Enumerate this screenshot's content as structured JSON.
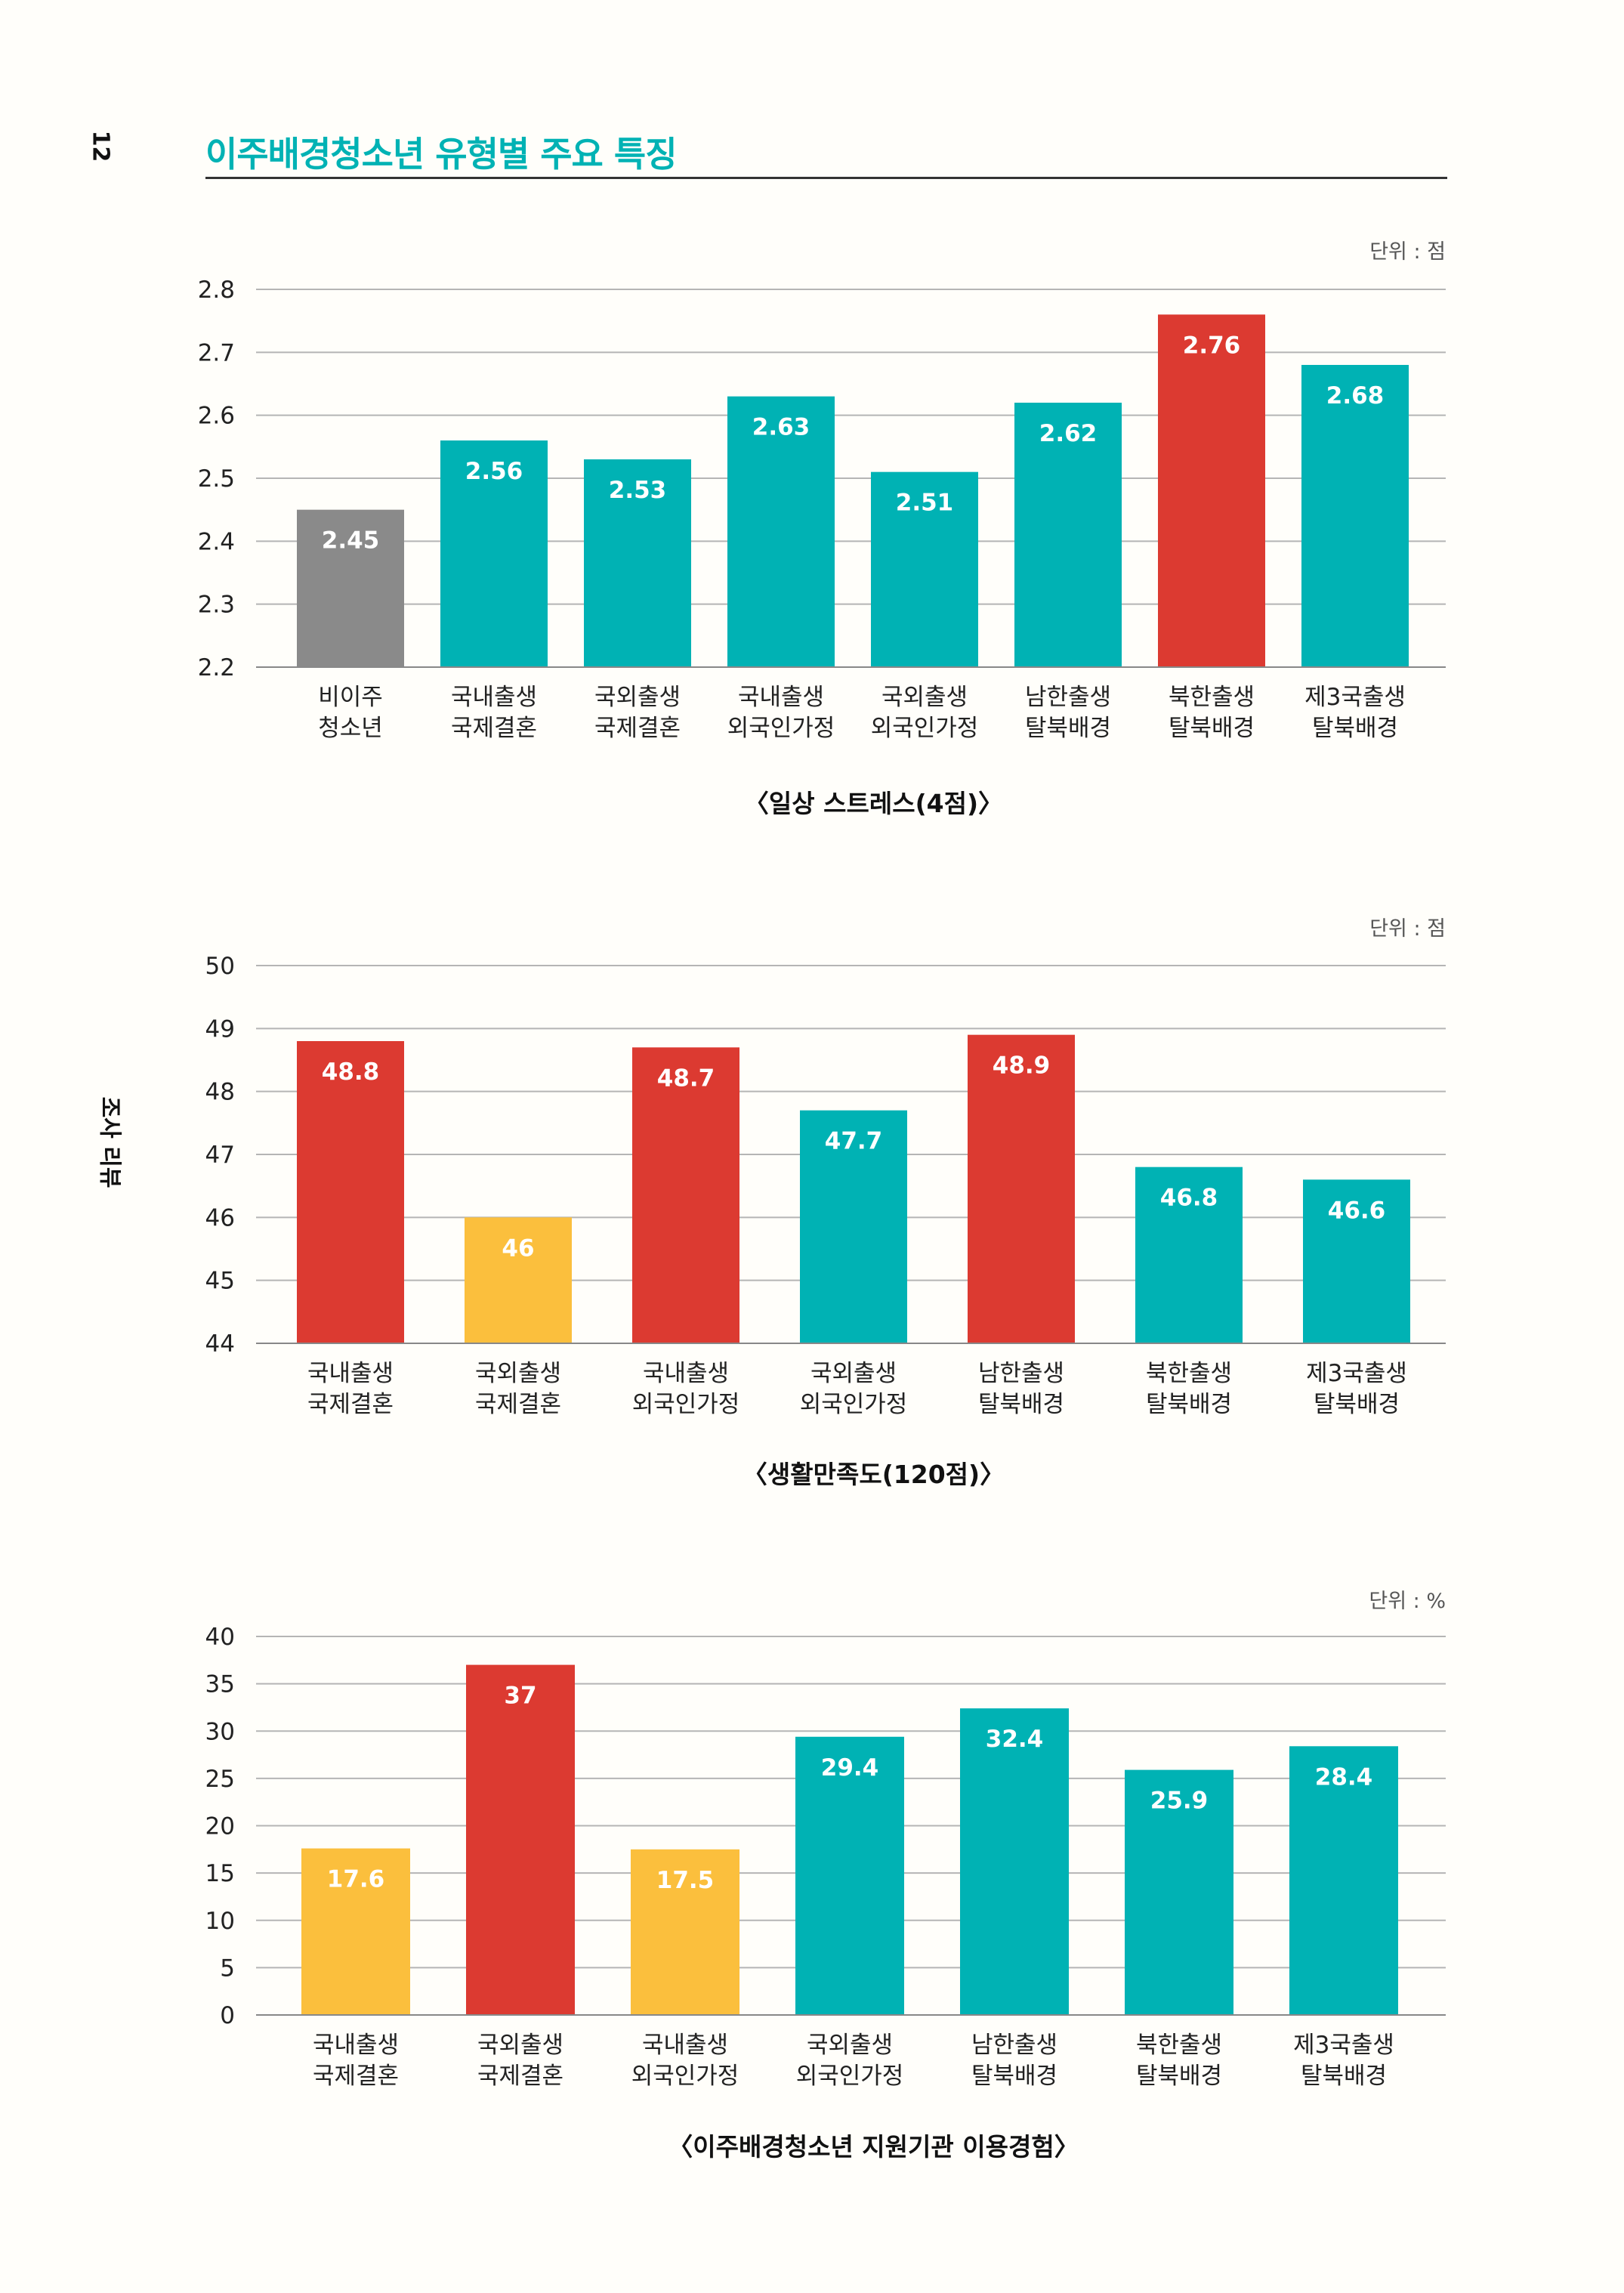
{
  "page": {
    "number": "12",
    "section": "조사 리뷰",
    "title": "이주배경청소년 유형별 주요 특징"
  },
  "chart_data": [
    {
      "type": "bar",
      "title": "〈일상 스트레스(4점)〉",
      "unit": "단위 : 점",
      "ylim": [
        2.2,
        2.8
      ],
      "yticks": [
        "2.2",
        "2.3",
        "2.4",
        "2.5",
        "2.6",
        "2.7",
        "2.8"
      ],
      "categories": [
        [
          "비이주",
          "청소년"
        ],
        [
          "국내출생",
          "국제결혼"
        ],
        [
          "국외출생",
          "국제결혼"
        ],
        [
          "국내출생",
          "외국인가정"
        ],
        [
          "국외출생",
          "외국인가정"
        ],
        [
          "남한출생",
          "탈북배경"
        ],
        [
          "북한출생",
          "탈북배경"
        ],
        [
          "제3국출생",
          "탈북배경"
        ]
      ],
      "values": [
        2.45,
        2.56,
        2.53,
        2.63,
        2.51,
        2.62,
        2.76,
        2.68
      ],
      "value_labels": [
        "2.45",
        "2.56",
        "2.53",
        "2.63",
        "2.51",
        "2.62",
        "2.76",
        "2.68"
      ],
      "colors": [
        "#8a8a8a",
        "#00b2b4",
        "#00b2b4",
        "#00b2b4",
        "#00b2b4",
        "#00b2b4",
        "#dc3a31",
        "#00b2b4"
      ],
      "grid": true
    },
    {
      "type": "bar",
      "title": "〈생활만족도(120점)〉",
      "unit": "단위 : 점",
      "ylim": [
        44,
        50
      ],
      "yticks": [
        "44",
        "45",
        "46",
        "47",
        "48",
        "49",
        "50"
      ],
      "categories": [
        [
          "국내출생",
          "국제결혼"
        ],
        [
          "국외출생",
          "국제결혼"
        ],
        [
          "국내출생",
          "외국인가정"
        ],
        [
          "국외출생",
          "외국인가정"
        ],
        [
          "남한출생",
          "탈북배경"
        ],
        [
          "북한출생",
          "탈북배경"
        ],
        [
          "제3국출생",
          "탈북배경"
        ]
      ],
      "values": [
        48.8,
        46,
        48.7,
        47.7,
        48.9,
        46.8,
        46.6
      ],
      "value_labels": [
        "48.8",
        "46",
        "48.7",
        "47.7",
        "48.9",
        "46.8",
        "46.6"
      ],
      "colors": [
        "#dc3a31",
        "#fbbf3d",
        "#dc3a31",
        "#00b2b4",
        "#dc3a31",
        "#00b2b4",
        "#00b2b4"
      ],
      "grid": true
    },
    {
      "type": "bar",
      "title": "〈이주배경청소년 지원기관 이용경험〉",
      "unit": "단위 : %",
      "ylim": [
        0,
        40
      ],
      "yticks": [
        "0",
        "5",
        "10",
        "15",
        "20",
        "25",
        "30",
        "35",
        "40"
      ],
      "categories": [
        [
          "국내출생",
          "국제결혼"
        ],
        [
          "국외출생",
          "국제결혼"
        ],
        [
          "국내출생",
          "외국인가정"
        ],
        [
          "국외출생",
          "외국인가정"
        ],
        [
          "남한출생",
          "탈북배경"
        ],
        [
          "북한출생",
          "탈북배경"
        ],
        [
          "제3국출생",
          "탈북배경"
        ]
      ],
      "values": [
        17.6,
        37,
        17.5,
        29.4,
        32.4,
        25.9,
        28.4
      ],
      "value_labels": [
        "17.6",
        "37",
        "17.5",
        "29.4",
        "32.4",
        "25.9",
        "28.4"
      ],
      "colors": [
        "#fbbf3d",
        "#dc3a31",
        "#fbbf3d",
        "#00b2b4",
        "#00b2b4",
        "#00b2b4",
        "#00b2b4"
      ],
      "grid": true
    }
  ]
}
